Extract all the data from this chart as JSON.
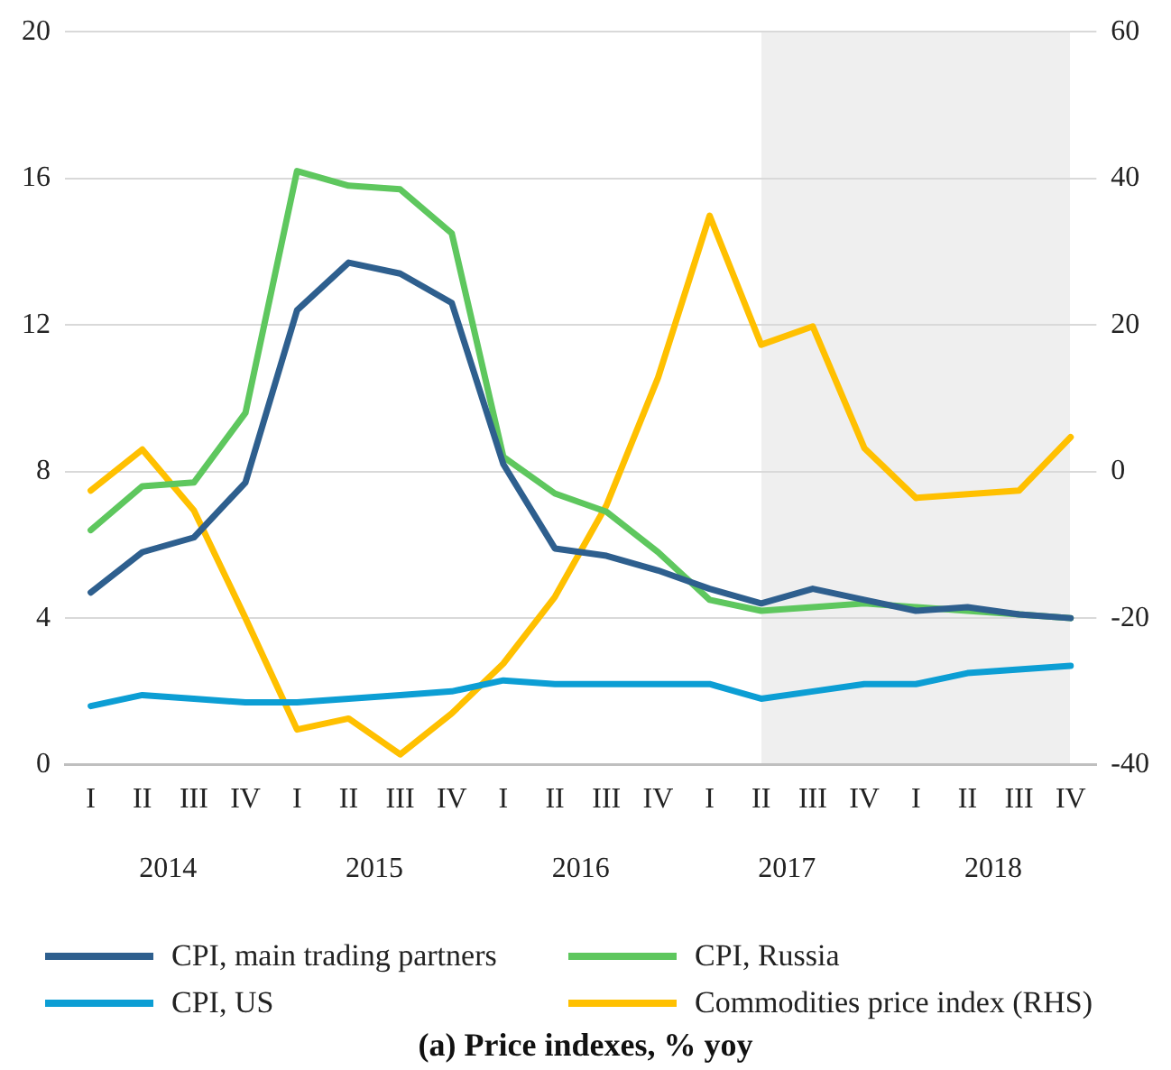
{
  "chart_data": {
    "type": "line",
    "title": "(a) Price indexes, % yoy",
    "categories": [
      "I",
      "II",
      "III",
      "IV",
      "I",
      "II",
      "III",
      "IV",
      "I",
      "II",
      "III",
      "IV",
      "I",
      "II",
      "III",
      "IV",
      "I",
      "II",
      "III",
      "IV"
    ],
    "series": [
      {
        "name": "CPI, main trading partners",
        "color": "#2e5f8e",
        "values": [
          4.7,
          5.8,
          6.2,
          7.7,
          12.4,
          13.7,
          13.4,
          12.6,
          8.2,
          5.9,
          5.7,
          5.3,
          4.8,
          4.4,
          4.8,
          4.5,
          4.2,
          4.3,
          4.1,
          4.0
        ]
      },
      {
        "name": "CPI, Russia",
        "color": "#5ec75e",
        "values": [
          6.4,
          7.6,
          7.7,
          9.6,
          16.2,
          15.8,
          15.7,
          14.5,
          8.4,
          7.4,
          6.9,
          5.8,
          4.5,
          4.2,
          4.3,
          4.4,
          4.3,
          4.2,
          4.1,
          4.0
        ]
      },
      {
        "name": "CPI, US",
        "color": "#0c9ed4",
        "values": [
          1.6,
          1.9,
          1.8,
          1.7,
          1.7,
          1.8,
          1.9,
          2.0,
          2.3,
          2.2,
          2.2,
          2.2,
          2.2,
          1.8,
          2.0,
          2.2,
          2.2,
          2.5,
          2.6,
          2.7
        ]
      },
      {
        "name": "Commodities price index (RHS)",
        "color": "#ffc000",
        "axis": "y2",
        "values": [
          -2.6,
          3.0,
          -5.3,
          -20,
          -35.2,
          -33.7,
          -38.6,
          -33,
          -26.2,
          -17.1,
          -4.6,
          12.8,
          34.9,
          17.3,
          19.8,
          3.2,
          -3.6,
          -3.1,
          -2.6,
          4.7
        ]
      }
    ],
    "ylim": [
      0,
      20
    ],
    "yticks": [
      0,
      4,
      8,
      12,
      16,
      20
    ],
    "y2lim": [
      -40,
      60
    ],
    "y2ticks": [
      -40,
      -20,
      0,
      20,
      40,
      60
    ],
    "grid": "y",
    "legend": "bottom",
    "marker": "none",
    "line_style": "solid",
    "annotations": [
      "2014",
      "2015",
      "2016",
      "2017",
      "2018"
    ]
  }
}
